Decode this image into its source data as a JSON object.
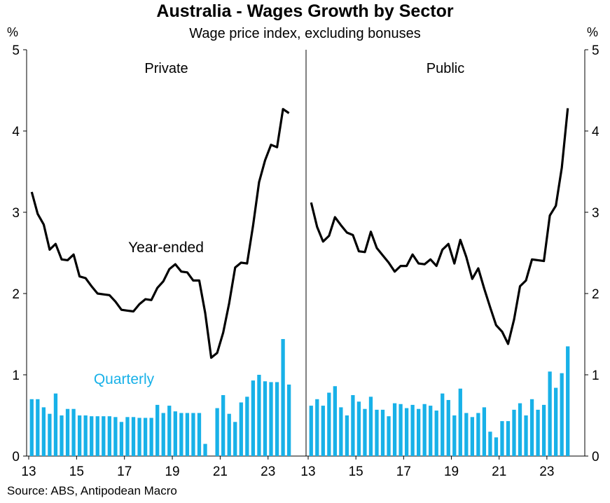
{
  "header": {
    "title": "Australia - Wages Growth by Sector",
    "subtitle": "Wage price index, excluding bonuses",
    "unit_left": "%",
    "unit_right": "%"
  },
  "footer": {
    "source": "Source: ABS, Antipodean Macro"
  },
  "colors": {
    "line": "#000000",
    "bars": "#18b1e8",
    "axis": "#000000"
  },
  "chart_data": [
    {
      "type": "bar+line",
      "panel": "Private",
      "panel_label": "Private",
      "ylim": [
        0,
        5
      ],
      "yticks": [
        0,
        1,
        2,
        3,
        4,
        5
      ],
      "xlim": [
        2013,
        2024.5
      ],
      "xticks": [
        2013,
        2015,
        2017,
        2019,
        2021,
        2023
      ],
      "xtick_labels": [
        "13",
        "15",
        "17",
        "19",
        "21",
        "23"
      ],
      "annotations": [
        "Year-ended",
        "Quarterly"
      ],
      "quarters": [
        "2013Q1",
        "2013Q2",
        "2013Q3",
        "2013Q4",
        "2014Q1",
        "2014Q2",
        "2014Q3",
        "2014Q4",
        "2015Q1",
        "2015Q2",
        "2015Q3",
        "2015Q4",
        "2016Q1",
        "2016Q2",
        "2016Q3",
        "2016Q4",
        "2017Q1",
        "2017Q2",
        "2017Q3",
        "2017Q4",
        "2018Q1",
        "2018Q2",
        "2018Q3",
        "2018Q4",
        "2019Q1",
        "2019Q2",
        "2019Q3",
        "2019Q4",
        "2020Q1",
        "2020Q2",
        "2020Q3",
        "2020Q4",
        "2021Q1",
        "2021Q2",
        "2021Q3",
        "2021Q4",
        "2022Q1",
        "2022Q2",
        "2022Q3",
        "2022Q4",
        "2023Q1",
        "2023Q2",
        "2023Q3",
        "2023Q4"
      ],
      "series": [
        {
          "name": "Quarterly",
          "kind": "bar",
          "values": [
            0.7,
            0.7,
            0.6,
            0.52,
            0.77,
            0.5,
            0.58,
            0.58,
            0.5,
            0.5,
            0.49,
            0.49,
            0.49,
            0.49,
            0.48,
            0.42,
            0.48,
            0.48,
            0.47,
            0.47,
            0.47,
            0.63,
            0.53,
            0.62,
            0.55,
            0.53,
            0.53,
            0.53,
            0.53,
            0.15,
            0.0,
            0.59,
            0.75,
            0.52,
            0.42,
            0.66,
            0.73,
            0.93,
            1.0,
            0.92,
            0.91,
            0.91,
            1.44,
            0.88
          ]
        },
        {
          "name": "Year-ended",
          "kind": "line",
          "values": [
            3.25,
            2.98,
            2.85,
            2.54,
            2.61,
            2.42,
            2.41,
            2.48,
            2.21,
            2.19,
            2.09,
            2.0,
            1.99,
            1.98,
            1.9,
            1.8,
            1.79,
            1.78,
            1.87,
            1.93,
            1.92,
            2.07,
            2.15,
            2.3,
            2.36,
            2.27,
            2.26,
            2.16,
            2.16,
            1.76,
            1.21,
            1.27,
            1.52,
            1.88,
            2.32,
            2.38,
            2.37,
            2.84,
            3.37,
            3.64,
            3.83,
            3.8,
            4.27,
            4.22
          ]
        }
      ]
    },
    {
      "type": "bar+line",
      "panel": "Public",
      "panel_label": "Public",
      "ylim": [
        0,
        5
      ],
      "yticks": [
        0,
        1,
        2,
        3,
        4,
        5
      ],
      "xlim": [
        2013,
        2024.5
      ],
      "xticks": [
        2013,
        2015,
        2017,
        2019,
        2021,
        2023
      ],
      "xtick_labels": [
        "13",
        "15",
        "17",
        "19",
        "21",
        "23"
      ],
      "quarters": [
        "2013Q1",
        "2013Q2",
        "2013Q3",
        "2013Q4",
        "2014Q1",
        "2014Q2",
        "2014Q3",
        "2014Q4",
        "2015Q1",
        "2015Q2",
        "2015Q3",
        "2015Q4",
        "2016Q1",
        "2016Q2",
        "2016Q3",
        "2016Q4",
        "2017Q1",
        "2017Q2",
        "2017Q3",
        "2017Q4",
        "2018Q1",
        "2018Q2",
        "2018Q3",
        "2018Q4",
        "2019Q1",
        "2019Q2",
        "2019Q3",
        "2019Q4",
        "2020Q1",
        "2020Q2",
        "2020Q3",
        "2020Q4",
        "2021Q1",
        "2021Q2",
        "2021Q3",
        "2021Q4",
        "2022Q1",
        "2022Q2",
        "2022Q3",
        "2022Q4",
        "2023Q1",
        "2023Q2",
        "2023Q3",
        "2023Q4"
      ],
      "series": [
        {
          "name": "Quarterly",
          "kind": "bar",
          "values": [
            0.62,
            0.7,
            0.62,
            0.78,
            0.86,
            0.6,
            0.5,
            0.75,
            0.67,
            0.58,
            0.73,
            0.57,
            0.57,
            0.49,
            0.65,
            0.64,
            0.59,
            0.63,
            0.58,
            0.64,
            0.62,
            0.56,
            0.77,
            0.69,
            0.5,
            0.83,
            0.53,
            0.48,
            0.53,
            0.6,
            0.3,
            0.23,
            0.43,
            0.43,
            0.57,
            0.65,
            0.5,
            0.7,
            0.57,
            0.63,
            1.04,
            0.84,
            1.02,
            1.35
          ]
        },
        {
          "name": "Year-ended",
          "kind": "line",
          "values": [
            3.12,
            2.82,
            2.64,
            2.71,
            2.94,
            2.84,
            2.75,
            2.72,
            2.52,
            2.51,
            2.76,
            2.56,
            2.47,
            2.38,
            2.27,
            2.34,
            2.34,
            2.48,
            2.37,
            2.36,
            2.42,
            2.34,
            2.54,
            2.61,
            2.37,
            2.66,
            2.45,
            2.18,
            2.31,
            2.06,
            1.83,
            1.61,
            1.53,
            1.38,
            1.68,
            2.09,
            2.16,
            2.42,
            2.41,
            2.4,
            2.96,
            3.08,
            3.55,
            4.28
          ]
        }
      ]
    }
  ]
}
